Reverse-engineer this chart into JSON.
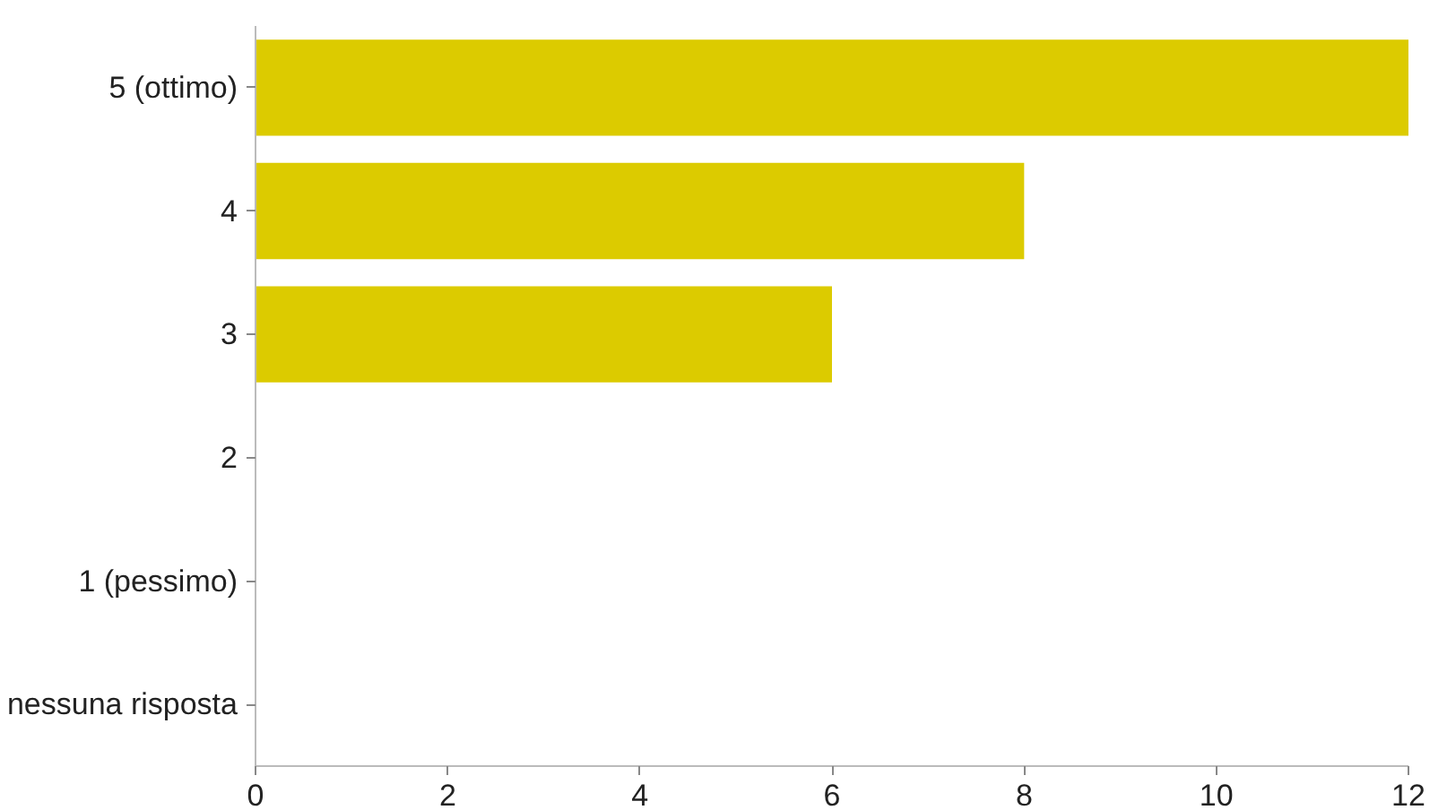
{
  "chart_data": {
    "type": "bar",
    "orientation": "horizontal",
    "categories": [
      "5 (ottimo)",
      "4",
      "3",
      "2",
      "1 (pessimo)",
      "nessuna risposta"
    ],
    "values": [
      12,
      8,
      6,
      0,
      0,
      0
    ],
    "color": "#dccb00",
    "xlim": [
      0,
      12
    ],
    "xticks": [
      0,
      2,
      4,
      6,
      8,
      10,
      12
    ],
    "grid": false
  }
}
